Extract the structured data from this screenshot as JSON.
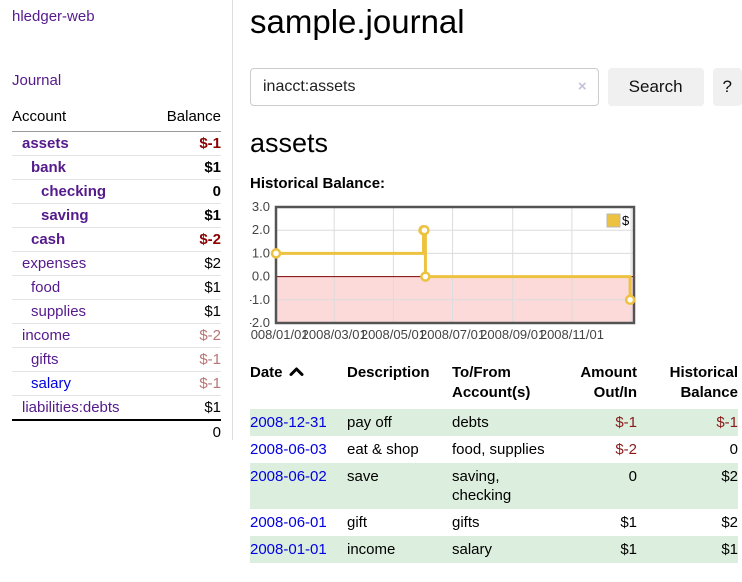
{
  "app": {
    "brand": "hledger-web",
    "nav_journal": "Journal"
  },
  "sidebar": {
    "col_account": "Account",
    "col_balance": "Balance",
    "accounts": [
      {
        "name": "assets",
        "indent": 1,
        "bold": true,
        "balance": "$-1",
        "balance_class": "neg-strong",
        "link_style": "visited"
      },
      {
        "name": "bank",
        "indent": 2,
        "bold": true,
        "balance": "$1",
        "balance_class": "",
        "link_style": "visited"
      },
      {
        "name": "checking",
        "indent": 3,
        "bold": true,
        "balance": "0",
        "balance_class": "",
        "link_style": "visited"
      },
      {
        "name": "saving",
        "indent": 3,
        "bold": true,
        "balance": "$1",
        "balance_class": "",
        "link_style": "visited"
      },
      {
        "name": "cash",
        "indent": 2,
        "bold": true,
        "balance": "$-2",
        "balance_class": "neg-strong",
        "link_style": "visited"
      },
      {
        "name": "expenses",
        "indent": 1,
        "bold": false,
        "balance": "$2",
        "balance_class": "",
        "link_style": "visited"
      },
      {
        "name": "food",
        "indent": 2,
        "bold": false,
        "balance": "$1",
        "balance_class": "",
        "link_style": "visited"
      },
      {
        "name": "supplies",
        "indent": 2,
        "bold": false,
        "balance": "$1",
        "balance_class": "",
        "link_style": "visited"
      },
      {
        "name": "income",
        "indent": 1,
        "bold": false,
        "balance": "$-2",
        "balance_class": "neg-muted",
        "link_style": "visited"
      },
      {
        "name": "gifts",
        "indent": 2,
        "bold": false,
        "balance": "$-1",
        "balance_class": "neg-muted",
        "link_style": "visited"
      },
      {
        "name": "salary",
        "indent": 2,
        "bold": false,
        "balance": "$-1",
        "balance_class": "neg-muted",
        "link_style": "unvisited"
      },
      {
        "name": "liabilities:debts",
        "indent": 1,
        "bold": false,
        "balance": "$1",
        "balance_class": "",
        "link_style": "visited"
      }
    ],
    "total": "0"
  },
  "header": {
    "title": "sample.journal"
  },
  "search": {
    "value": "inacct:assets",
    "clear_icon": "×",
    "button": "Search",
    "help_button": "?"
  },
  "account_page": {
    "heading": "assets",
    "chart_label": "Historical Balance:"
  },
  "chart_data": {
    "type": "line",
    "steps": true,
    "title": "Historical Balance:",
    "legend": {
      "label": "$",
      "position": "top-right"
    },
    "series": [
      {
        "name": "$",
        "color": "#edc240",
        "points": [
          {
            "date": "2008-01-01",
            "day": 0,
            "value": 1
          },
          {
            "date": "2008-06-01",
            "day": 152,
            "value": 2
          },
          {
            "date": "2008-06-02",
            "day": 153,
            "value": 2
          },
          {
            "date": "2008-06-03",
            "day": 154,
            "value": 0
          },
          {
            "date": "2008-12-31",
            "day": 365,
            "value": -1
          }
        ]
      }
    ],
    "x_ticks": [
      {
        "day": 0,
        "label": "2008/01/01"
      },
      {
        "day": 60,
        "label": "2008/03/01"
      },
      {
        "day": 121,
        "label": "2008/05/01"
      },
      {
        "day": 182,
        "label": "2008/07/01"
      },
      {
        "day": 244,
        "label": "2008/09/01"
      },
      {
        "day": 305,
        "label": "2008/11/01"
      },
      {
        "day": 366,
        "label": ""
      }
    ],
    "y_ticks": [
      "3.0",
      "2.0",
      "1.0",
      "0.0",
      "-1.0",
      "-2.0"
    ],
    "xlim_days": [
      0,
      369
    ],
    "ylim": [
      -2,
      3
    ],
    "grid_on": true,
    "grid_color": "#dcdcdc",
    "border_color": "#545454",
    "negative_fill": "#fcdada",
    "zero_line_color": "#7d0000",
    "marker_fill": "#ffffff",
    "tick_label_color": "#444444"
  },
  "register_table": {
    "headers": {
      "date": "Date",
      "description": "Description",
      "accounts": "To/From Account(s)",
      "amount": "Amount Out/In",
      "balance": "Historical Balance"
    },
    "rows": [
      {
        "date": "2008-12-31",
        "description": "pay off",
        "accounts": "debts",
        "amount": "$-1",
        "amount_neg": true,
        "balance": "$-1",
        "balance_neg": true,
        "shaded": true
      },
      {
        "date": "2008-06-03",
        "description": "eat & shop",
        "accounts": "food, supplies",
        "amount": "$-2",
        "amount_neg": true,
        "balance": "0",
        "balance_neg": false,
        "shaded": false
      },
      {
        "date": "2008-06-02",
        "description": "save",
        "accounts": "saving, checking",
        "amount": "0",
        "amount_neg": false,
        "balance": "$2",
        "balance_neg": false,
        "shaded": true
      },
      {
        "date": "2008-06-01",
        "description": "gift",
        "accounts": "gifts",
        "amount": "$1",
        "amount_neg": false,
        "balance": "$2",
        "balance_neg": false,
        "shaded": false
      },
      {
        "date": "2008-01-01",
        "description": "income",
        "accounts": "salary",
        "amount": "$1",
        "amount_neg": false,
        "balance": "$1",
        "balance_neg": false,
        "shaded": true
      }
    ]
  }
}
